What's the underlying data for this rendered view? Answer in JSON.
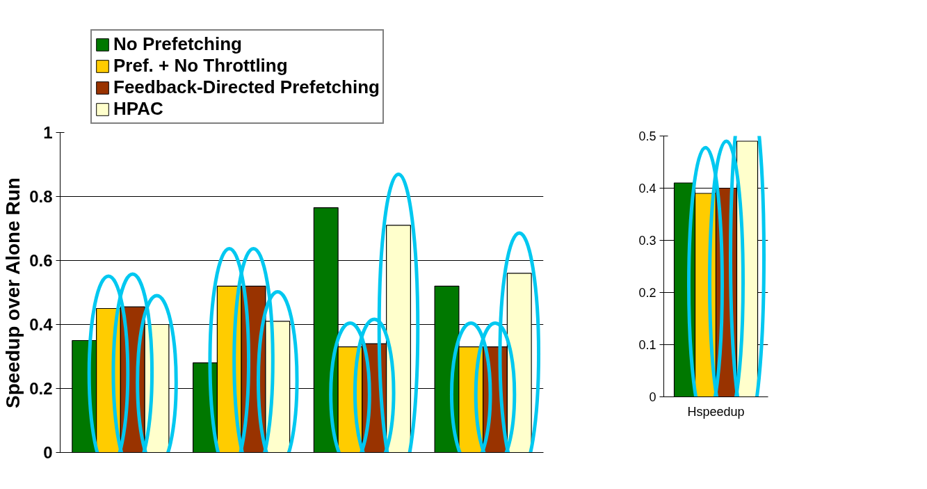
{
  "chart_data": [
    {
      "type": "bar",
      "ylabel": "Speedup over Alone Run",
      "categories": [
        null,
        null,
        null,
        null
      ],
      "ylim": [
        0,
        1
      ],
      "yticks": [
        0,
        0.2,
        0.4,
        0.6,
        0.8,
        1
      ],
      "grid": "y",
      "legend": "top",
      "series": [
        {
          "name": "No Prefetching",
          "color": "#007800",
          "values": [
            0.35,
            0.28,
            0.765,
            0.52
          ]
        },
        {
          "name": "Pref. + No Throttling",
          "color": "#ffcc00",
          "values": [
            0.45,
            0.52,
            0.33,
            0.33
          ]
        },
        {
          "name": "Feedback-Directed Prefetching",
          "color": "#993300",
          "values": [
            0.455,
            0.52,
            0.34,
            0.33
          ]
        },
        {
          "name": "HPAC",
          "color": "#ffffcc",
          "values": [
            0.4,
            0.41,
            0.71,
            0.56
          ]
        }
      ]
    },
    {
      "type": "bar",
      "categories": [
        "Hspeedup"
      ],
      "ylim": [
        0,
        0.5
      ],
      "yticks": [
        0,
        0.1,
        0.2,
        0.3,
        0.4,
        0.5
      ],
      "grid": "y",
      "series": [
        {
          "color": "#007800",
          "values": [
            0.41
          ]
        },
        {
          "color": "#ffcc00",
          "values": [
            0.39
          ]
        },
        {
          "color": "#993300",
          "values": [
            0.4
          ]
        },
        {
          "color": "#ffffcc",
          "values": [
            0.49
          ]
        }
      ]
    }
  ]
}
